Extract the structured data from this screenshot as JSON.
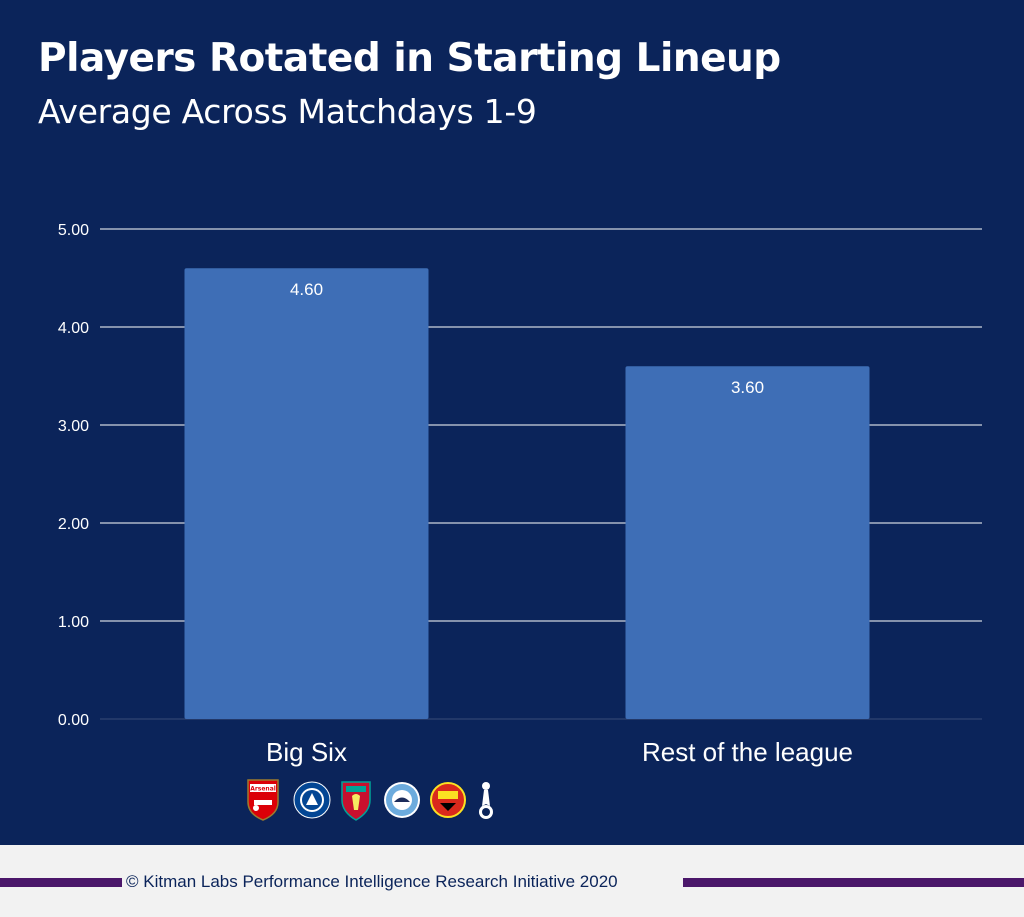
{
  "header": {
    "title": "Players Rotated in Starting Lineup",
    "subtitle": "Average Across Matchdays 1-9"
  },
  "chart_data": {
    "type": "bar",
    "title": "Players Rotated in Starting Lineup",
    "subtitle": "Average Across Matchdays 1-9",
    "categories": [
      "Big Six",
      "Rest of the league"
    ],
    "values": [
      4.6,
      3.6
    ],
    "value_labels": [
      "4.60",
      "3.60"
    ],
    "ylim": [
      0,
      5
    ],
    "yticks": [
      0,
      1,
      2,
      3,
      4,
      5
    ],
    "ytick_labels": [
      "0.00",
      "1.00",
      "2.00",
      "3.00",
      "4.00",
      "5.00"
    ],
    "xlabel": "",
    "ylabel": "",
    "grid": true,
    "bar_color": "#3e6eb6",
    "background_color": "#0b245a"
  },
  "logos": {
    "big_six_crests": [
      "arsenal-crest",
      "chelsea-crest",
      "liverpool-crest",
      "manchester-city-crest",
      "manchester-united-crest",
      "tottenham-crest"
    ],
    "arsenal_text": "Arsenal"
  },
  "footer": {
    "text": "© Kitman Labs Performance Intelligence Research Initiative 2020",
    "accent_color": "#4b176a"
  }
}
